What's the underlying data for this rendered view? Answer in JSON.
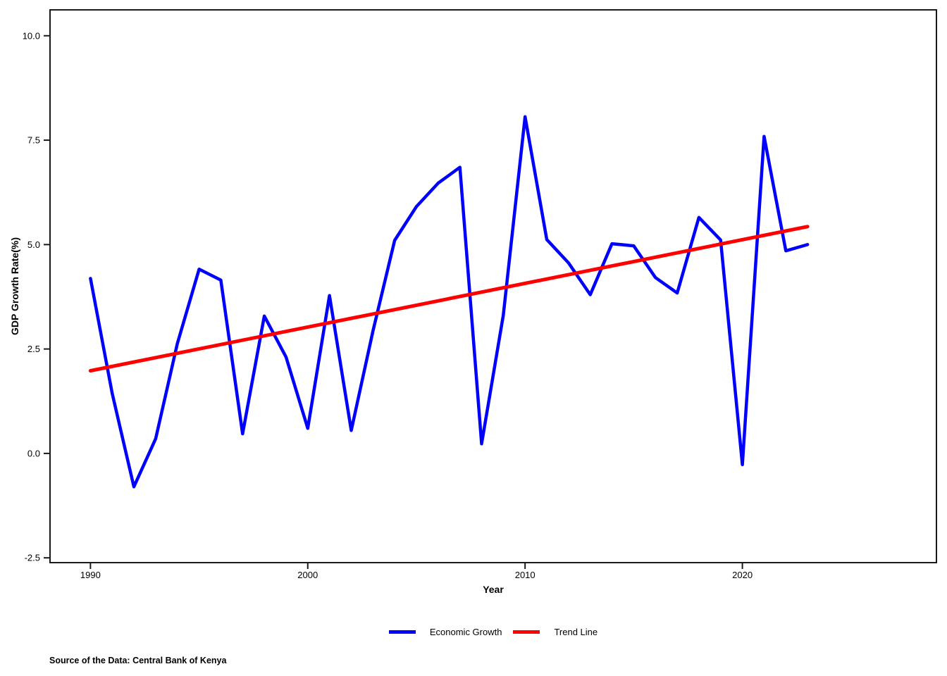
{
  "page": {
    "source_note": "Source of the Data: Central Bank of Kenya"
  },
  "chart_data": {
    "type": "line",
    "title": "",
    "xlabel": "Year",
    "ylabel": "GDP Growth Rate(%)",
    "xlim": [
      1988.14,
      2028.93
    ],
    "ylim": [
      -2.615,
      10.62
    ],
    "grid": false,
    "legend_position": "bottom",
    "axis_color": "#1a1a1a",
    "xticks": [
      {
        "value": 1990,
        "label": "1990"
      },
      {
        "value": 2000,
        "label": "2000"
      },
      {
        "value": 2010,
        "label": "2010"
      },
      {
        "value": 2020,
        "label": "2020"
      }
    ],
    "yticks": [
      {
        "value": 10.0,
        "label": "10.0"
      },
      {
        "value": 7.5,
        "label": "7.5"
      },
      {
        "value": 5.0,
        "label": "5.0"
      },
      {
        "value": 2.5,
        "label": "2.5"
      },
      {
        "value": 0.0,
        "label": "0.0"
      },
      {
        "value": -2.5,
        "label": "-2.5"
      }
    ],
    "series": [
      {
        "name": "Economic Growth",
        "color": "#0000ff",
        "width": 4.5,
        "x": [
          1990,
          1991,
          1992,
          1993,
          1994,
          1995,
          1996,
          1997,
          1998,
          1999,
          2000,
          2001,
          2002,
          2003,
          2004,
          2005,
          2006,
          2007,
          2008,
          2009,
          2010,
          2011,
          2012,
          2013,
          2014,
          2015,
          2016,
          2017,
          2018,
          2019,
          2020,
          2021,
          2022,
          2023
        ],
        "values": [
          4.19,
          1.44,
          -0.8,
          0.35,
          2.63,
          4.41,
          4.15,
          0.47,
          3.29,
          2.31,
          0.6,
          3.78,
          0.55,
          2.93,
          5.1,
          5.91,
          6.47,
          6.85,
          0.23,
          3.31,
          8.06,
          5.12,
          4.56,
          3.8,
          5.02,
          4.97,
          4.21,
          3.84,
          5.65,
          5.11,
          -0.27,
          7.59,
          4.85,
          5.0
        ]
      },
      {
        "name": "Trend Line",
        "color": "#ff0000",
        "width": 5,
        "x": [
          1990,
          2023
        ],
        "values": [
          1.98,
          5.43
        ]
      }
    ]
  }
}
